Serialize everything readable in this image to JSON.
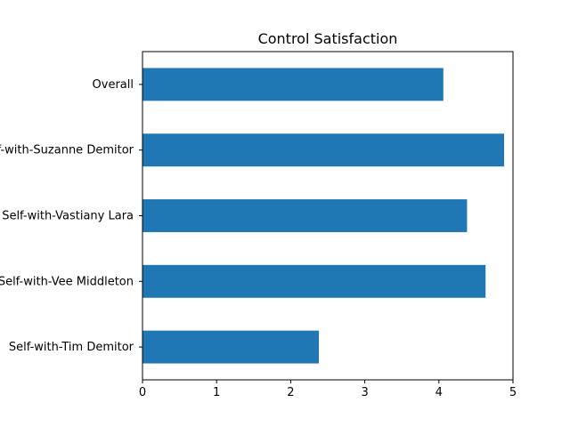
{
  "chart_data": {
    "type": "bar",
    "orientation": "horizontal",
    "title": "Control Satisfaction",
    "xlabel": "",
    "ylabel": "",
    "categories": [
      "Overall",
      "Self-with-Suzanne Demitor",
      "Self-with-Vastiany Lara",
      "Self-with-Vee Middleton",
      "Self-with-Tim Demitor"
    ],
    "values": [
      4.06,
      4.88,
      4.38,
      4.63,
      2.38
    ],
    "xlim": [
      0,
      5
    ],
    "xticks": [
      "0",
      "1",
      "2",
      "3",
      "4",
      "5"
    ],
    "grid": false,
    "bar_color": "#1f77b4"
  }
}
